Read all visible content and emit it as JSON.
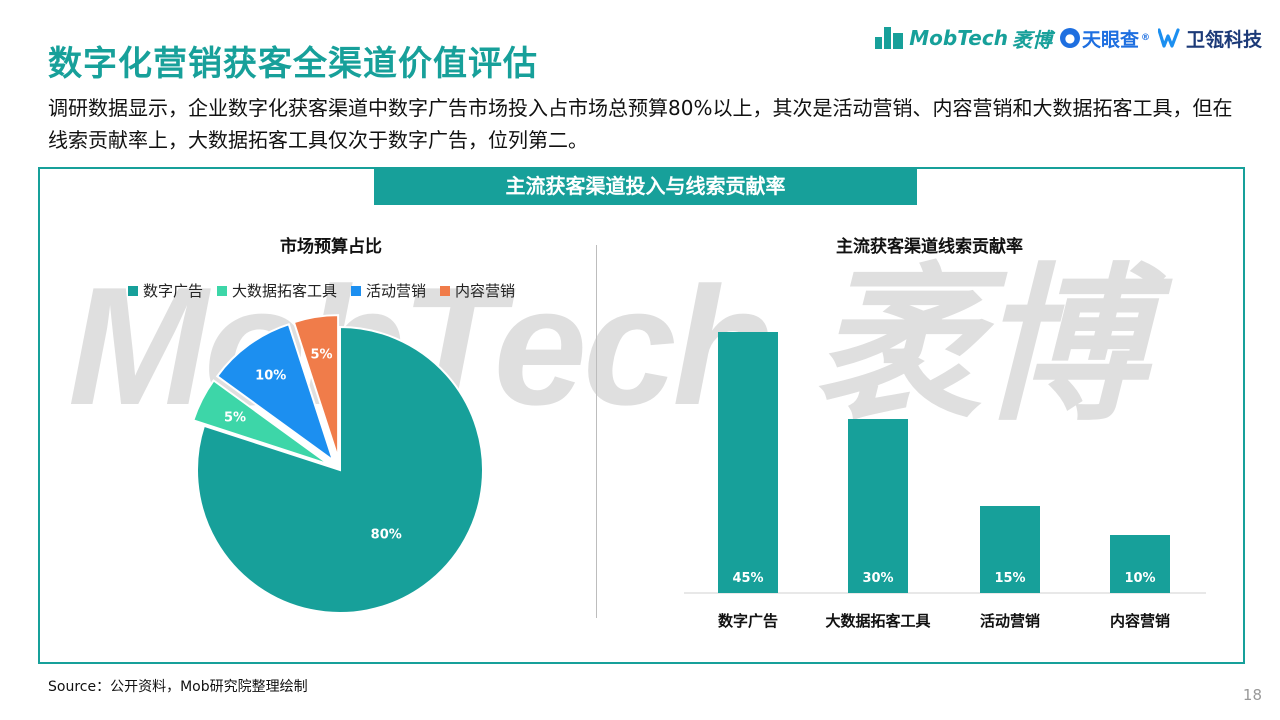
{
  "page": {
    "title": "数字化营销获客全渠道价值评估",
    "description": "调研数据显示，企业数字化获客渠道中数字广告市场投入占市场总预算80%以上，其次是活动营销、内容营销和大数据拓客工具，但在线索贡献率上，大数据拓客工具仅次于数字广告，位列第二。",
    "banner": "主流获客渠道投入与线索贡献率",
    "watermark": "MobTech 袤博",
    "source": "Source：公开资料，Mob研究院整理绘制",
    "page_number": "18"
  },
  "logos": {
    "mobtech": "MobTech",
    "mobtech_cn": "袤博",
    "tianyancha": "天眼查",
    "tianyancha_mark": "®",
    "weigong": "卫瓴科技"
  },
  "colors": {
    "accent": "#17a09a",
    "pie": [
      "#17a09a",
      "#3dd6a8",
      "#1c8ff0",
      "#f07c4a"
    ],
    "bar": "#17a09a"
  },
  "chart_data": [
    {
      "type": "pie",
      "title": "市场预算占比",
      "legend": "top",
      "categories": [
        "数字广告",
        "大数据拓客工具",
        "活动营销",
        "内容营销"
      ],
      "values": [
        80,
        5,
        10,
        5
      ],
      "labels": [
        "80%",
        "5%",
        "10%",
        "5%"
      ],
      "exploded": [
        false,
        true,
        true,
        true
      ]
    },
    {
      "type": "bar",
      "title": "主流获客渠道线索贡献率",
      "categories": [
        "数字广告",
        "大数据拓客工具",
        "活动营销",
        "内容营销"
      ],
      "values": [
        45,
        30,
        15,
        10
      ],
      "labels": [
        "45%",
        "30%",
        "15%",
        "10%"
      ],
      "ylim": [
        0,
        50
      ],
      "grid": false
    }
  ]
}
